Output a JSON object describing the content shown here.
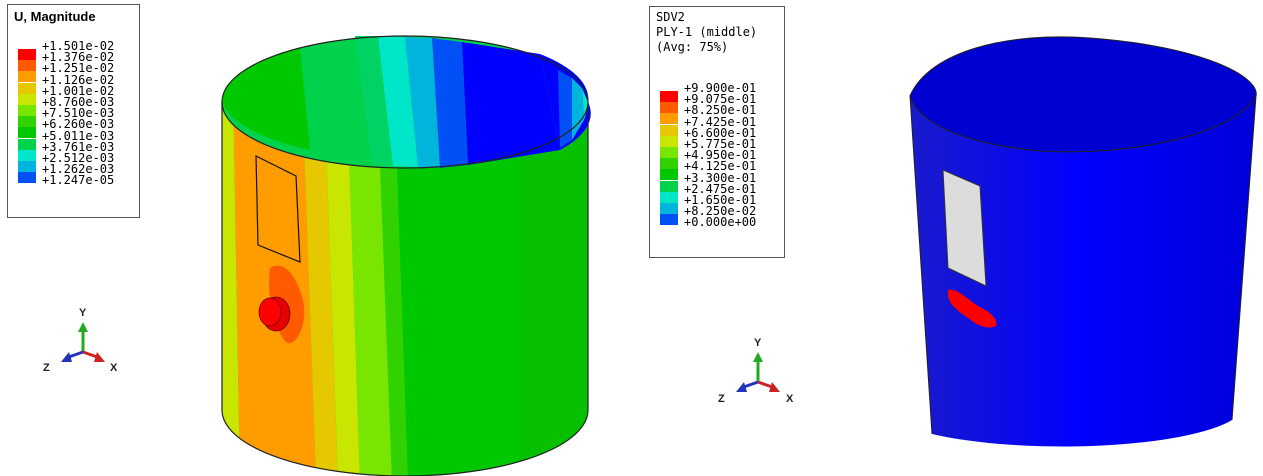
{
  "left_plot": {
    "legend": {
      "title": "U, Magnitude",
      "levels": [
        "+1.501e-02",
        "+1.376e-02",
        "+1.251e-02",
        "+1.126e-02",
        "+1.001e-02",
        "+8.760e-03",
        "+7.510e-03",
        "+6.260e-03",
        "+5.011e-03",
        "+3.761e-03",
        "+2.512e-03",
        "+1.262e-03",
        "+1.247e-05"
      ],
      "colors": [
        "#ff0000",
        "#ff5a00",
        "#ff9c00",
        "#e6c800",
        "#c8e600",
        "#78e600",
        "#32d200",
        "#00c800",
        "#00d24b",
        "#00e6c8",
        "#00b4dc",
        "#0050f5",
        "#0000ff"
      ]
    },
    "triad": {
      "x": "X",
      "y": "Y",
      "z": "Z"
    }
  },
  "right_plot": {
    "legend": {
      "title_lines": [
        "SDV2",
        "PLY-1 (middle)",
        "(Avg: 75%)"
      ],
      "levels": [
        "+9.900e-01",
        "+9.075e-01",
        "+8.250e-01",
        "+7.425e-01",
        "+6.600e-01",
        "+5.775e-01",
        "+4.950e-01",
        "+4.125e-01",
        "+3.300e-01",
        "+2.475e-01",
        "+1.650e-01",
        "+8.250e-02",
        "+0.000e+00"
      ],
      "colors": [
        "#ff0000",
        "#ff5a00",
        "#ff9c00",
        "#e6c800",
        "#c8e600",
        "#78e600",
        "#32d200",
        "#00c800",
        "#00d24b",
        "#00e6c8",
        "#00b4dc",
        "#0050f5",
        "#0000ff"
      ]
    },
    "triad": {
      "x": "X",
      "y": "Y",
      "z": "Z"
    }
  }
}
